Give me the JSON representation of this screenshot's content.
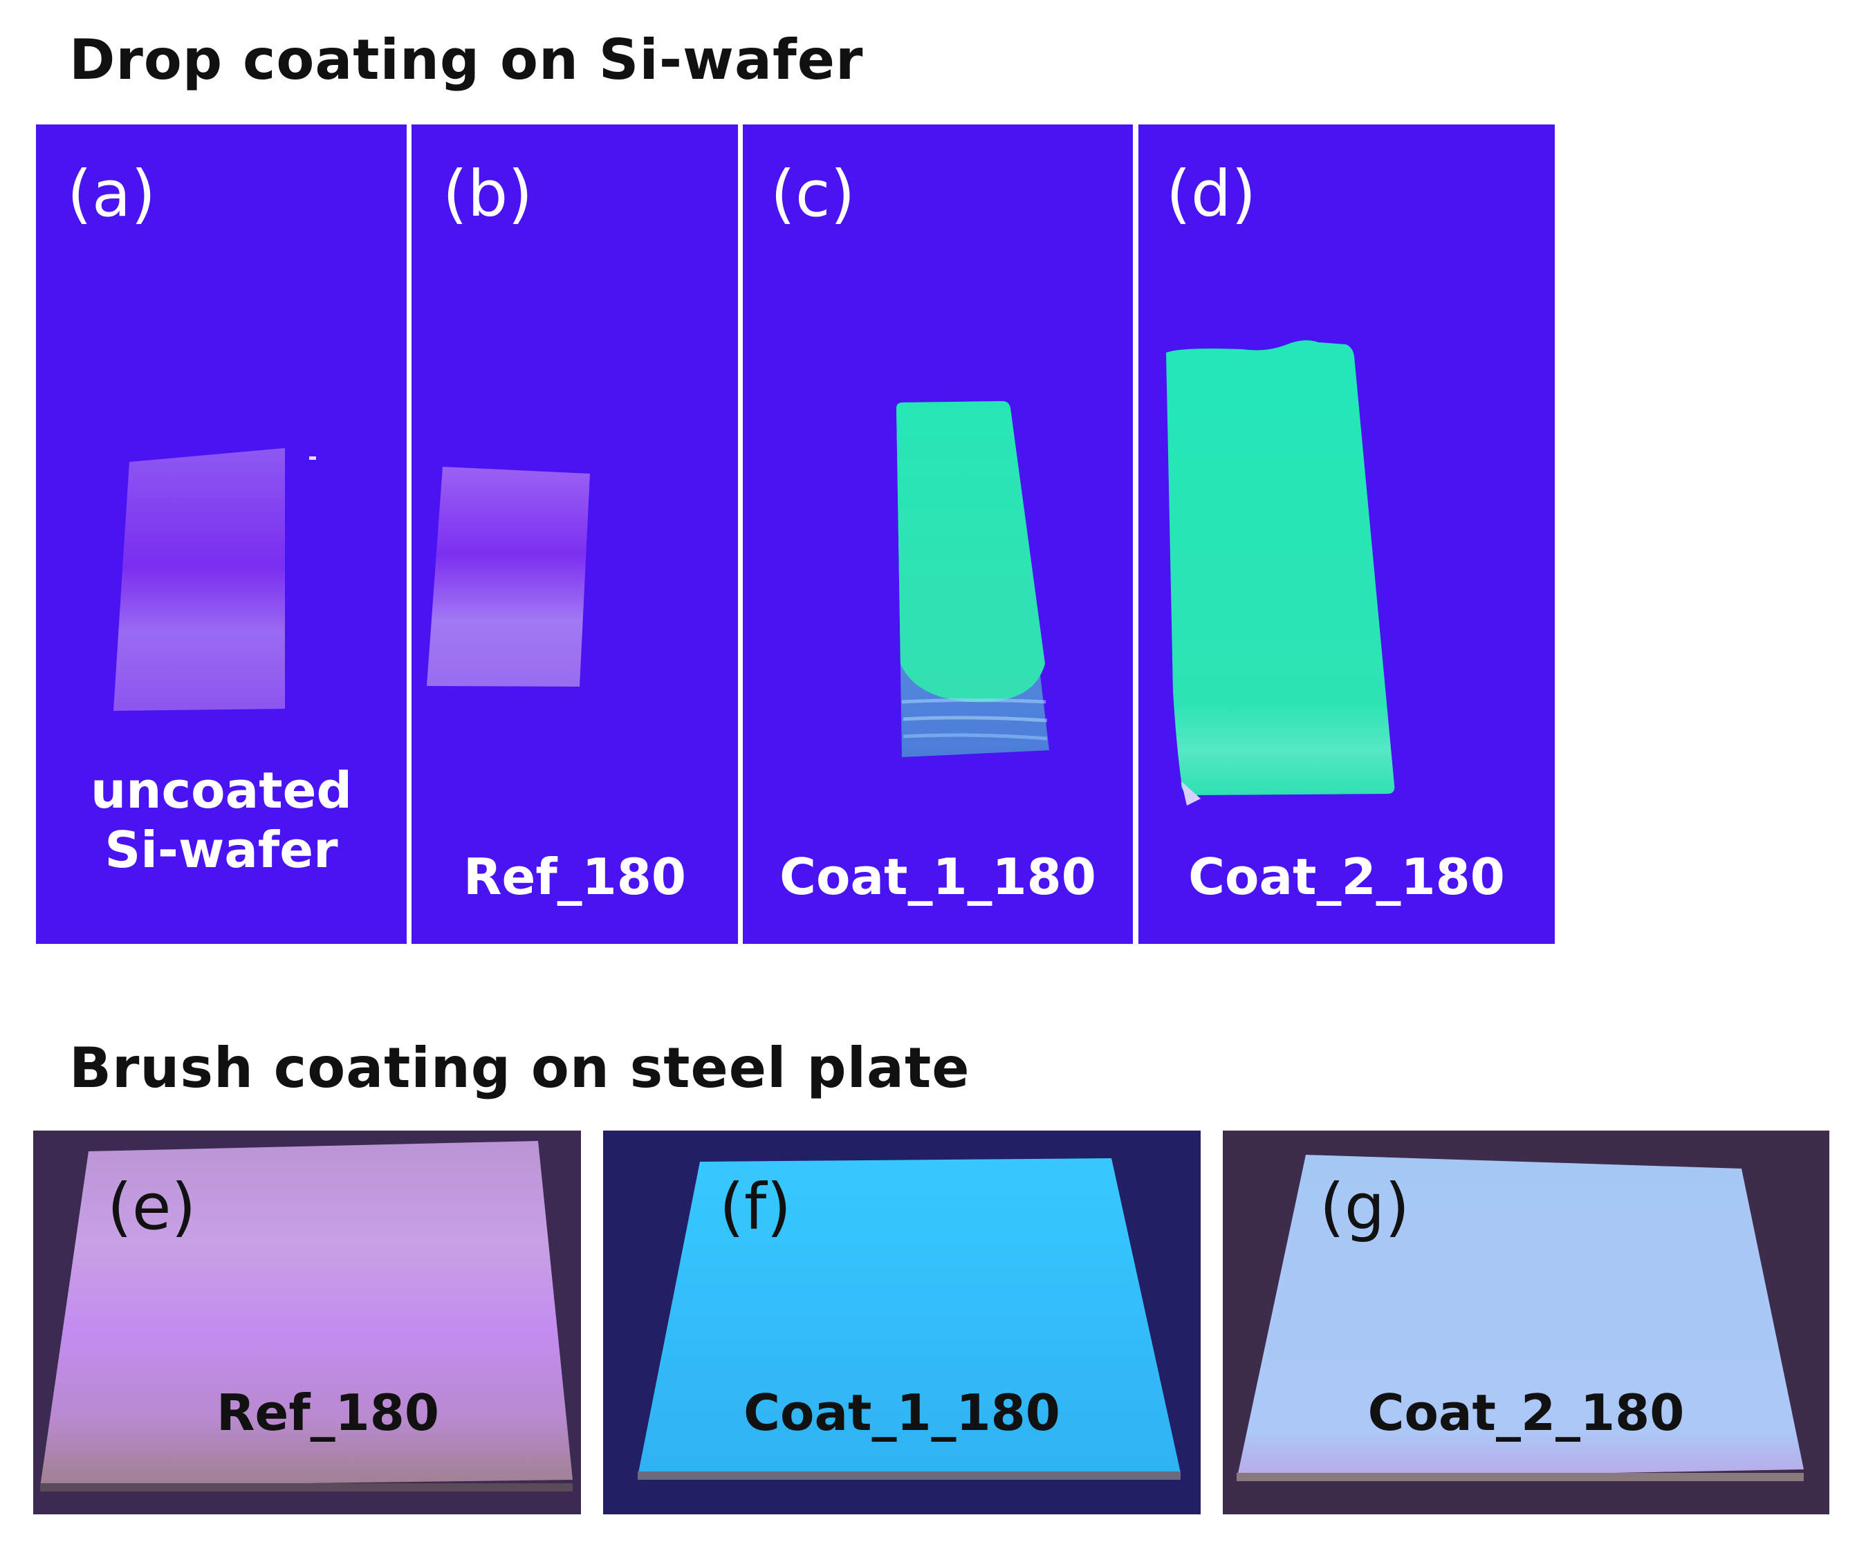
{
  "sections": {
    "drop": {
      "title": "Drop coating on Si-wafer"
    },
    "brush": {
      "title": "Brush coating on steel plate"
    }
  },
  "panels": {
    "a": {
      "label": "(a)",
      "sample_line1": "uncoated",
      "sample_line2": "Si-wafer"
    },
    "b": {
      "label": "(b)",
      "sample": "Ref_180"
    },
    "c": {
      "label": "(c)",
      "sample": "Coat_1_180"
    },
    "d": {
      "label": "(d)",
      "sample": "Coat_2_180"
    },
    "e": {
      "label": "(e)",
      "sample": "Ref_180"
    },
    "f": {
      "label": "(f)",
      "sample": "Coat_1_180"
    },
    "g": {
      "label": "(g)",
      "sample": "Coat_2_180"
    }
  },
  "colors": {
    "uv_background": "#4a13f2",
    "wafer_uncoated": "#8a4cf0",
    "fluorescent_green": "#2fe7b8",
    "steel_ref": "#c79adf",
    "steel_coat1": "#32c8ff",
    "steel_coat2": "#a9c8f5"
  }
}
